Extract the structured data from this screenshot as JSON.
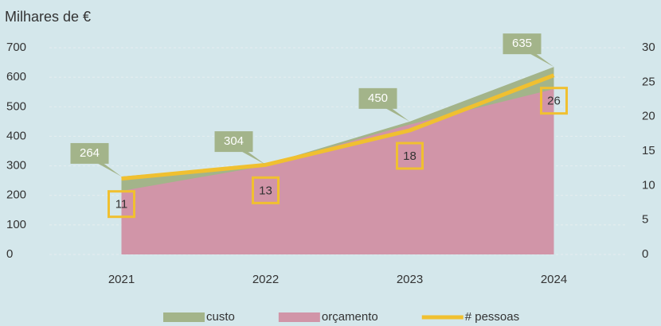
{
  "chart_data": {
    "type": "area",
    "title": "Milhares de €",
    "categories": [
      "2021",
      "2022",
      "2023",
      "2024"
    ],
    "series": [
      {
        "name": "custo",
        "color": "#a3b48a",
        "type": "area",
        "data_labels": true,
        "values": [
          264,
          304,
          450,
          635
        ]
      },
      {
        "name": "orçamento",
        "color": "#d195a8",
        "type": "area",
        "data_labels": false,
        "values": [
          215,
          300,
          440,
          560
        ]
      },
      {
        "name": "# pessoas",
        "color": "#f0c030",
        "type": "line",
        "axis": "y2",
        "data_labels": true,
        "values": [
          11,
          13,
          18,
          26
        ]
      }
    ],
    "ylim": [
      0,
      700
    ],
    "yticks": [
      0,
      100,
      200,
      300,
      400,
      500,
      600,
      700
    ],
    "y2lim": [
      0,
      30
    ],
    "y2ticks": [
      0,
      5,
      10,
      15,
      20,
      25,
      30
    ],
    "grid": true
  }
}
